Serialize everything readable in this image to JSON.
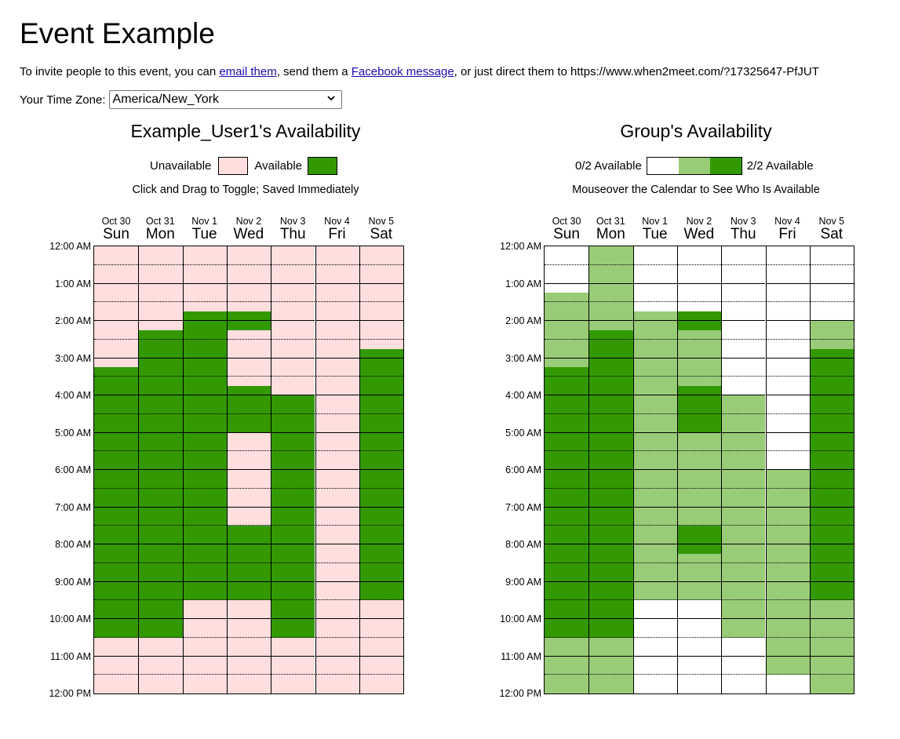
{
  "page": {
    "title": "Event Example",
    "invite_prefix": "To invite people to this event, you can ",
    "email_link": "email them",
    "invite_mid": ", send them a ",
    "facebook_link": "Facebook message",
    "invite_suffix": ", or just direct them to https://www.when2meet.com/?17325647-PfJUT",
    "timezone_label": "Your Time Zone:",
    "timezone_value": "America/New_York"
  },
  "user_panel": {
    "title": "Example_User1's Availability",
    "unavailable_label": "Unavailable",
    "available_label": "Available",
    "hint": "Click and Drag to Toggle; Saved Immediately"
  },
  "group_panel": {
    "title": "Group's Availability",
    "min_label": "0/2 Available",
    "max_label": "2/2 Available",
    "hint": "Mouseover the Calendar to See Who Is Available"
  },
  "colors": {
    "unavailable": "#ffdede",
    "available": "#339900",
    "group_levels": [
      "#ffffff",
      "#99cc77",
      "#339900"
    ]
  },
  "days": [
    {
      "date": "Oct 30",
      "weekday": "Sun"
    },
    {
      "date": "Oct 31",
      "weekday": "Mon"
    },
    {
      "date": "Nov 1",
      "weekday": "Tue"
    },
    {
      "date": "Nov 2",
      "weekday": "Wed"
    },
    {
      "date": "Nov 3",
      "weekday": "Thu"
    },
    {
      "date": "Nov 4",
      "weekday": "Fri"
    },
    {
      "date": "Nov 5",
      "weekday": "Sat"
    }
  ],
  "time_labels": [
    "12:00 AM",
    "1:00 AM",
    "2:00 AM",
    "3:00 AM",
    "4:00 AM",
    "5:00 AM",
    "6:00 AM",
    "7:00 AM",
    "8:00 AM",
    "9:00 AM",
    "10:00 AM",
    "11:00 AM",
    "12:00 PM"
  ],
  "slots_per_day": 48,
  "user_availability": [
    [
      [
        13,
        42
      ]
    ],
    [
      [
        9,
        42
      ]
    ],
    [
      [
        7,
        38
      ]
    ],
    [
      [
        7,
        9
      ],
      [
        15,
        20
      ],
      [
        30,
        38
      ]
    ],
    [
      [
        16,
        42
      ]
    ],
    [],
    [
      [
        11,
        38
      ]
    ]
  ],
  "group_availability": [
    [
      [
        0,
        5,
        0
      ],
      [
        5,
        13,
        1
      ],
      [
        13,
        42,
        2
      ],
      [
        42,
        48,
        1
      ]
    ],
    [
      [
        0,
        9,
        1
      ],
      [
        9,
        42,
        2
      ],
      [
        42,
        48,
        1
      ]
    ],
    [
      [
        0,
        7,
        0
      ],
      [
        7,
        38,
        1
      ],
      [
        38,
        48,
        0
      ]
    ],
    [
      [
        0,
        7,
        0
      ],
      [
        7,
        9,
        2
      ],
      [
        9,
        15,
        1
      ],
      [
        15,
        20,
        2
      ],
      [
        20,
        30,
        1
      ],
      [
        30,
        33,
        2
      ],
      [
        33,
        38,
        1
      ],
      [
        38,
        48,
        0
      ]
    ],
    [
      [
        0,
        16,
        0
      ],
      [
        16,
        42,
        1
      ],
      [
        42,
        48,
        0
      ]
    ],
    [
      [
        0,
        24,
        0
      ],
      [
        24,
        46,
        1
      ],
      [
        46,
        48,
        0
      ]
    ],
    [
      [
        0,
        8,
        0
      ],
      [
        8,
        11,
        1
      ],
      [
        11,
        38,
        2
      ],
      [
        38,
        48,
        1
      ]
    ]
  ]
}
